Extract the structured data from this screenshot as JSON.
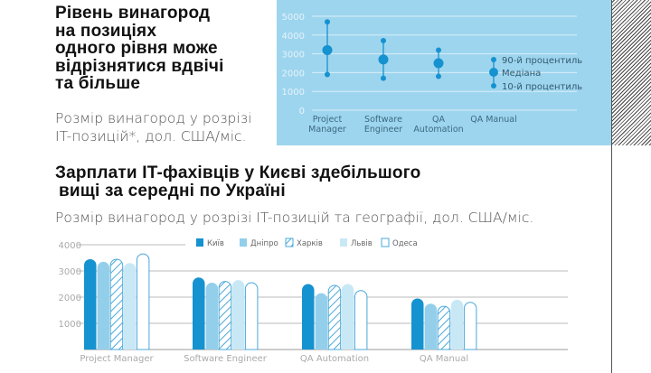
{
  "heading1": [
    "Рівень винагород",
    "на позиціях",
    "одного рівня може",
    "відрізнятися вдвічі",
    "та більше"
  ],
  "subtitle1": [
    "Розмір винагород у розрізі",
    "IT-позицій*, дол. США/міс."
  ],
  "heading2": [
    "Зарплати IT-фахівців у Києві здебільшого",
    "вищі за середні по Україні"
  ],
  "subtitle2": "Розмір винагород у розрізі IT-позицій та географії, дол. США/міс.",
  "chart_data": [
    {
      "type": "scatter",
      "title": "Рівень винагород на позиціях одного рівня",
      "yticks": [
        "0",
        "1000",
        "2000",
        "3000",
        "4000",
        "5000"
      ],
      "ylim": [
        0,
        5000
      ],
      "categories": [
        [
          "Project",
          "Manager"
        ],
        [
          "Software",
          "Engineer"
        ],
        [
          "QA",
          "Automation"
        ],
        [
          "QA Manual"
        ]
      ],
      "series": [
        {
          "name": "90-й процентиль",
          "values": [
            4700,
            3700,
            3200,
            null
          ]
        },
        {
          "name": "Медіана",
          "values": [
            3200,
            2700,
            2500,
            null
          ]
        },
        {
          "name": "10-й процентиль",
          "values": [
            1900,
            1700,
            1800,
            null
          ]
        }
      ],
      "legend_labels": [
        "90-й процентиль",
        "Медіана",
        "10-й процентиль"
      ],
      "legend_placement": "right"
    },
    {
      "type": "bar",
      "yticks": [
        "1000",
        "2000",
        "3000",
        "4000"
      ],
      "ylim": [
        0,
        4000
      ],
      "categories": [
        "Project Manager",
        "Software Engineer",
        "QA Automation",
        "QA Manual"
      ],
      "series": [
        {
          "name": "Київ",
          "values": [
            3450,
            2750,
            2500,
            1950
          ]
        },
        {
          "name": "Дніпро",
          "values": [
            3350,
            2550,
            2150,
            1750
          ]
        },
        {
          "name": "Харків",
          "values": [
            3450,
            2600,
            2450,
            1650
          ]
        },
        {
          "name": "Львів",
          "values": [
            3300,
            2650,
            2500,
            1900
          ]
        },
        {
          "name": "Одеса",
          "values": [
            3650,
            2550,
            2250,
            1800
          ]
        }
      ],
      "legend_placement": "top"
    }
  ],
  "colors": {
    "kyiv": "#1592d0",
    "dnipro": "#93cfea",
    "kharkiv": "#4aa8dc",
    "lviv": "#c9e8f6",
    "odesa": "#4aa8dc",
    "panel": "#9ed5ee",
    "dot": "#1592d0"
  }
}
